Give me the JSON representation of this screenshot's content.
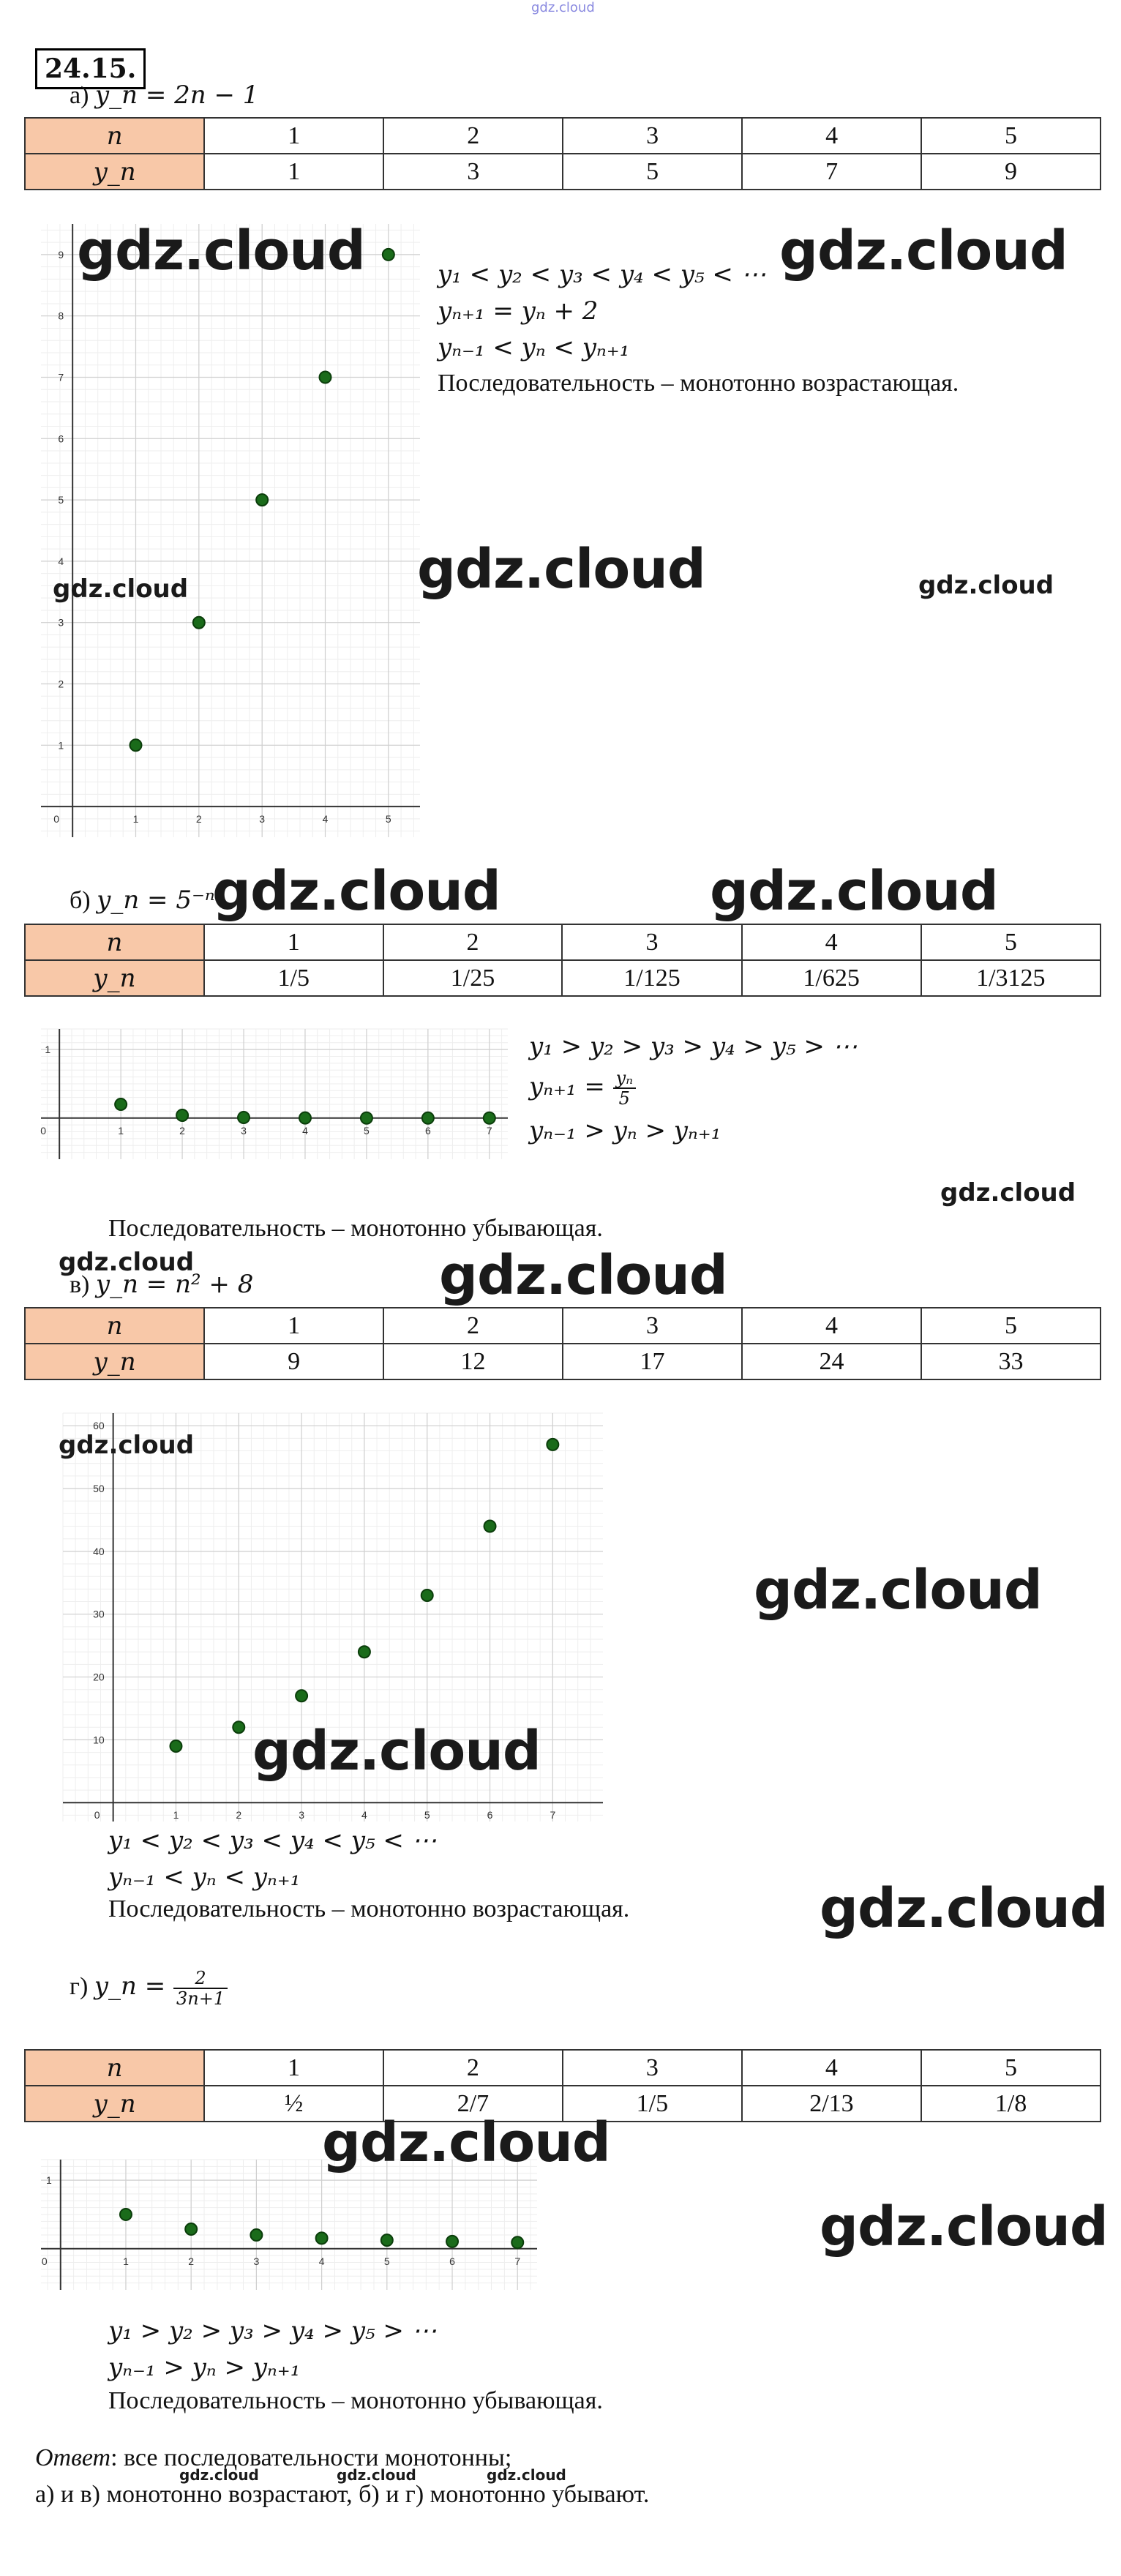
{
  "header_watermark": "gdz.cloud",
  "problem_number": "24.15.",
  "watermark": "gdz.cloud",
  "answer_label": "Ответ",
  "answer_text": ": все последовательности монотонны;",
  "answer_line2": "а) и в) монотонно возрастают, б) и г) монотонно убывают.",
  "parts": [
    {
      "label": "а)",
      "formula": "y_n = 2n − 1",
      "n_header": "n",
      "y_header": "y_n",
      "n": [
        "1",
        "2",
        "3",
        "4",
        "5"
      ],
      "y": [
        "1",
        "3",
        "5",
        "7",
        "9"
      ],
      "lines": [
        "y₁ < y₂ < y₃ < y₄ < y₅ < ⋯",
        "yₙ₊₁ = yₙ + 2",
        "yₙ₋₁ < yₙ < yₙ₊₁"
      ],
      "conclusion": "Последовательность – монотонно возрастающая."
    },
    {
      "label": "б)",
      "formula": "y_n = 5⁻ⁿ",
      "n_header": "n",
      "y_header": "y_n",
      "n": [
        "1",
        "2",
        "3",
        "4",
        "5"
      ],
      "y": [
        "1/5",
        "1/25",
        "1/125",
        "1/625",
        "1/3125"
      ],
      "lines": [
        "y₁ > y₂ > y₃ > y₄ > y₅ > ⋯",
        "yₙ₋₁ > yₙ > yₙ₊₁"
      ],
      "recurrence_lhs": "yₙ₊₁ = ",
      "recurrence_num": "yₙ",
      "recurrence_den": "5",
      "conclusion": "Последовательность – монотонно убывающая."
    },
    {
      "label": "в)",
      "formula": "y_n = n² + 8",
      "n_header": "n",
      "y_header": "y_n",
      "n": [
        "1",
        "2",
        "3",
        "4",
        "5"
      ],
      "y": [
        "9",
        "12",
        "17",
        "24",
        "33"
      ],
      "lines": [
        "y₁ < y₂ < y₃ < y₄ < y₅ < ⋯",
        "yₙ₋₁ < yₙ < yₙ₊₁"
      ],
      "conclusion": "Последовательность – монотонно возрастающая."
    },
    {
      "label": "г)",
      "formula_lhs": "y_n = ",
      "formula_num": "2",
      "formula_den": "3n+1",
      "n_header": "n",
      "y_header": "y_n",
      "n": [
        "1",
        "2",
        "3",
        "4",
        "5"
      ],
      "y": [
        "½",
        "2/7",
        "1/5",
        "2/13",
        "1/8"
      ],
      "lines": [
        "y₁ > y₂ > y₃ > y₄ > y₅ > ⋯",
        "yₙ₋₁ > yₙ > yₙ₊₁"
      ],
      "conclusion": "Последовательность – монотонно убывающая."
    }
  ],
  "chart_data": [
    {
      "type": "scatter",
      "x": [
        1,
        2,
        3,
        4,
        5
      ],
      "y": [
        1,
        3,
        5,
        7,
        9
      ],
      "xlim": [
        -0.5,
        5.5
      ],
      "ylim": [
        -0.5,
        9.5
      ],
      "x_ticks": [
        "0",
        "1",
        "2",
        "3",
        "4",
        "5"
      ],
      "y_ticks": [
        "1",
        "2",
        "3",
        "4",
        "5",
        "6",
        "7",
        "8",
        "9"
      ],
      "grid": true,
      "point_color": "#1a6b1a"
    },
    {
      "type": "scatter",
      "x": [
        1,
        2,
        3,
        4,
        5,
        6,
        7
      ],
      "y": [
        0.2,
        0.04,
        0.008,
        0.0016,
        0.00032,
        6.4e-05,
        1.28e-05
      ],
      "xlim": [
        -0.3,
        7.3
      ],
      "ylim": [
        -0.6,
        1.3
      ],
      "x_ticks": [
        "0",
        "1",
        "2",
        "3",
        "4",
        "5",
        "6",
        "7"
      ],
      "y_ticks": [
        "1"
      ],
      "grid": true,
      "point_color": "#1a6b1a"
    },
    {
      "type": "scatter",
      "x": [
        1,
        2,
        3,
        4,
        5,
        6,
        7
      ],
      "y": [
        9,
        12,
        17,
        24,
        33,
        44,
        57
      ],
      "xlim": [
        -0.8,
        7.8
      ],
      "ylim": [
        -3,
        62
      ],
      "x_ticks": [
        "0",
        "1",
        "2",
        "3",
        "4",
        "5",
        "6",
        "7"
      ],
      "y_ticks": [
        "10",
        "20",
        "30",
        "40",
        "50",
        "60"
      ],
      "grid": true,
      "point_color": "#1a6b1a"
    },
    {
      "type": "scatter",
      "x": [
        1,
        2,
        3,
        4,
        5,
        6,
        7
      ],
      "y": [
        0.5,
        0.2857,
        0.2,
        0.1538,
        0.125,
        0.1053,
        0.0909
      ],
      "xlim": [
        -0.3,
        7.3
      ],
      "ylim": [
        -0.6,
        1.3
      ],
      "x_ticks": [
        "0",
        "1",
        "2",
        "3",
        "4",
        "5",
        "6",
        "7"
      ],
      "y_ticks": [
        "1"
      ],
      "grid": true,
      "point_color": "#1a6b1a"
    }
  ]
}
